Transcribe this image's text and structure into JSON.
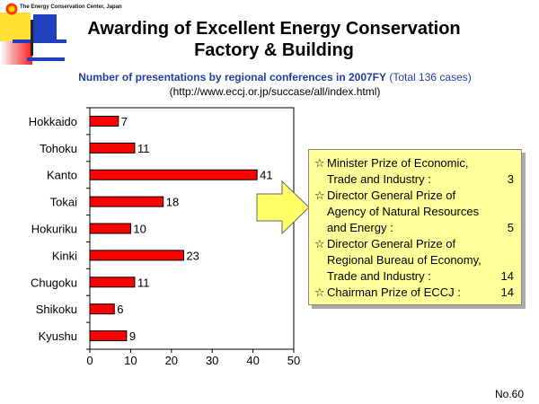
{
  "header": {
    "org_name": "The Energy Conservation Center, Japan",
    "title_line1": "Awarding of Excellent Energy Conservation",
    "title_line2": "Factory & Building",
    "subtitle_main": "Number of presentations  by regional conferences  in 2007FY",
    "subtitle_total": "(Total 136 cases)",
    "url": "(http://www.eccj.or.jp/succase/all/index.html)"
  },
  "colors": {
    "bar": "#ff0000",
    "title_blue": "#1f3f9f",
    "box_fill": "#ffff99",
    "arrow_fill": "#ffff66"
  },
  "chart_data": {
    "type": "bar",
    "orientation": "horizontal",
    "title": "Number of presentations by regional conferences in 2007FY",
    "categories": [
      "Hokkaido",
      "Tohoku",
      "Kanto",
      "Tokai",
      "Hokuriku",
      "Kinki",
      "Chugoku",
      "Shikoku",
      "Kyushu"
    ],
    "values": [
      7,
      11,
      41,
      18,
      10,
      23,
      11,
      6,
      9
    ],
    "xlim": [
      0,
      50
    ],
    "xticks": [
      0,
      10,
      20,
      30,
      40,
      50
    ],
    "xlabel": "",
    "ylabel": "",
    "grid": false,
    "data_labels": true
  },
  "prizes": [
    {
      "star": "☆",
      "lines": [
        "Minister Prize of Economic,",
        "Trade and Industry :"
      ],
      "count": "3"
    },
    {
      "star": "☆",
      "lines": [
        "Director General Prize of",
        "Agency of Natural Resources",
        "and Energy :"
      ],
      "count": "5"
    },
    {
      "star": "☆",
      "lines": [
        "Director General Prize of",
        "Regional Bureau  of Economy,",
        "Trade and Industry :"
      ],
      "count": "14"
    },
    {
      "star": "☆",
      "lines": [
        "Chairman Prize of ECCJ :"
      ],
      "count": "14"
    }
  ],
  "footer": {
    "page_number": "No.60"
  }
}
